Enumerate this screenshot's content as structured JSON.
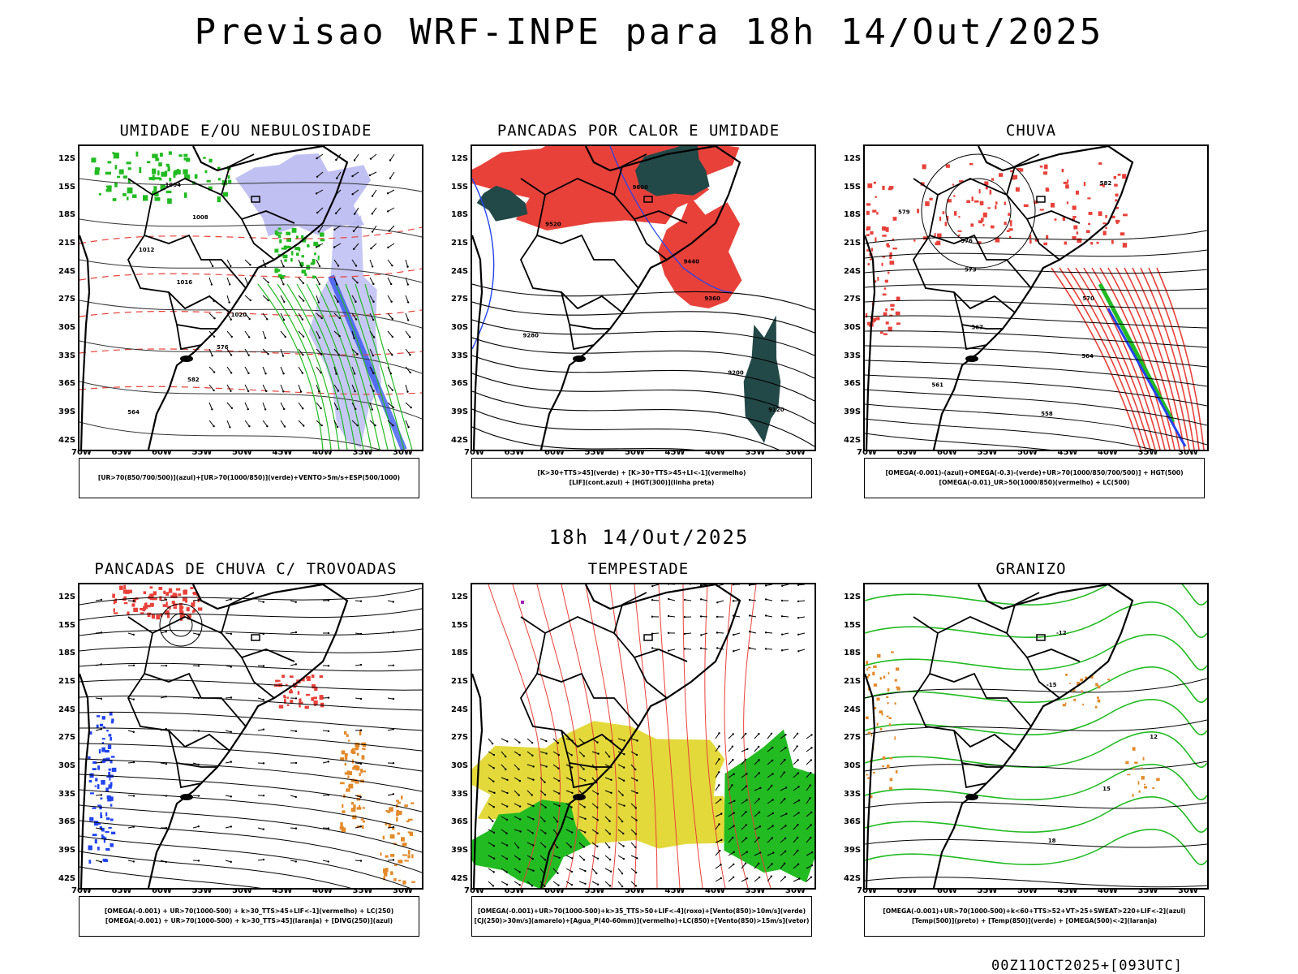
{
  "main_title": "Previsao WRF-INPE  para 18h 14/Out/2025",
  "mid_title": "18h 14/Out/2025",
  "footer_stamp": "00Z11OCT2025+[093UTC]",
  "lat_labels": [
    "12S",
    "15S",
    "18S",
    "21S",
    "24S",
    "27S",
    "30S",
    "33S",
    "36S",
    "39S",
    "42S"
  ],
  "lon_labels": [
    "70W",
    "65W",
    "60W",
    "55W",
    "50W",
    "45W",
    "40W",
    "35W",
    "30W"
  ],
  "panels": [
    {
      "title": "UMIDADE E/OU NEBULOSIDADE",
      "legend": [
        "[UR>70(850/700/500)](azul)+[UR>70(1000/850)](verde)+VENTO>5m/s+ESP(500/1000)"
      ],
      "contour_labels": [
        "1004",
        "1008",
        "1012",
        "1016",
        "1020",
        "576",
        "582",
        "564"
      ]
    },
    {
      "title": "PANCADAS POR CALOR E UMIDADE",
      "legend": [
        "[K>30+TTS>45](verde)  +  [K>30+TTS>45+LI<-1](vermelho)",
        "[LIF](cont.azul)  +  [HGT(300)](linha preta)"
      ],
      "contour_labels": [
        "9600",
        "9520",
        "9440",
        "9360",
        "9280",
        "9200",
        "9120"
      ]
    },
    {
      "title": "CHUVA",
      "legend": [
        "[OMEGA(-0.001)-(azul)+OMEGA(-0.3)-(verde)+UR>70(1000/850/700/500)]  +  HGT(500)",
        "[OMEGA(-0.01)_UR>50(1000/850)(vermelho)  +  LC(500)"
      ],
      "contour_labels": [
        "582",
        "579",
        "576",
        "573",
        "570",
        "567",
        "564",
        "561",
        "558"
      ]
    },
    {
      "title": "PANCADAS DE CHUVA C/ TROVOADAS",
      "legend": [
        "[OMEGA(-0.001)  +  UR>70(1000-500)  +  k>30_TTS>45+LIF<-1](vermelho)  +  LC(250)",
        "[OMEGA(-0.001)  +  UR>70(1000-500)  +  k>30_TTS>45](laranja)  +  [DIVG(250)](azul)"
      ],
      "contour_labels": []
    },
    {
      "title": "TEMPESTADE",
      "legend": [
        "[OMEGA(-0.001)+UR>70(1000-500)+k>35_TTS>50+LIF<-4](roxo)+[Vento(850)>10m/s](verde)",
        "[CJ(250)>30m/s](amarelo)+[Agua_P(40-60mm)](vermelho)+LC(850)+[Vento(850)>15m/s](vetor)"
      ],
      "contour_labels": []
    },
    {
      "title": "GRANIZO",
      "legend": [
        "[OMEGA(-0.001)+UR>70(1000-500)+k<60+TTS>52+VT>25+SWEAT>220+LIF<-2](azul)",
        "[Temp(500)](preto)  +  [Temp(850)](verde)  +  [OMEGA(500)<-2](laranja)"
      ],
      "contour_labels": [
        "-12",
        "-15",
        "12",
        "15",
        "18"
      ]
    }
  ],
  "colors": {
    "red": "#e8413a",
    "green": "#22bb22",
    "blue": "#2244ee",
    "lavender": "#b9b9f2",
    "darkteal": "#234848",
    "yellow": "#e3d93a",
    "orange": "#e38a2a",
    "purple": "#a020c0"
  }
}
